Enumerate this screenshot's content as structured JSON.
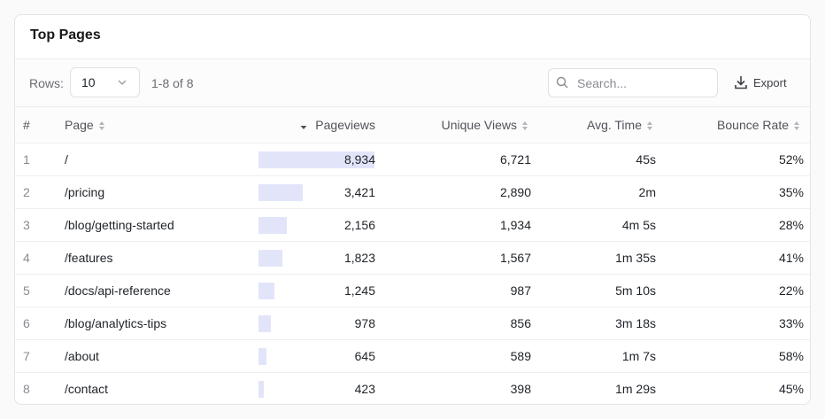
{
  "card": {
    "title": "Top Pages"
  },
  "toolbar": {
    "rows_label": "Rows:",
    "rows_value": "10",
    "range": "1-8 of 8",
    "search_placeholder": "Search...",
    "export": "Export"
  },
  "table": {
    "columns": [
      "#",
      "Page",
      "Pageviews",
      "Unique Views",
      "Avg. Time",
      "Bounce Rate"
    ],
    "rows": [
      {
        "rank": "1",
        "page": "/",
        "pageviews": {
          "value": 8934,
          "label": "8,934"
        },
        "unique_views": "6,721",
        "avg_time": "45s",
        "bounce_rate": "52%"
      },
      {
        "rank": "2",
        "page": "/pricing",
        "pageviews": {
          "value": 3421,
          "label": "3,421"
        },
        "unique_views": "2,890",
        "avg_time": "2m",
        "bounce_rate": "35%"
      },
      {
        "rank": "3",
        "page": "/blog/getting-started",
        "pageviews": {
          "value": 2156,
          "label": "2,156"
        },
        "unique_views": "1,934",
        "avg_time": "4m 5s",
        "bounce_rate": "28%"
      },
      {
        "rank": "4",
        "page": "/features",
        "pageviews": {
          "value": 1823,
          "label": "1,823"
        },
        "unique_views": "1,567",
        "avg_time": "1m 35s",
        "bounce_rate": "41%"
      },
      {
        "rank": "5",
        "page": "/docs/api-reference",
        "pageviews": {
          "value": 1245,
          "label": "1,245"
        },
        "unique_views": "987",
        "avg_time": "5m 10s",
        "bounce_rate": "22%"
      },
      {
        "rank": "6",
        "page": "/blog/analytics-tips",
        "pageviews": {
          "value": 978,
          "label": "978"
        },
        "unique_views": "856",
        "avg_time": "3m 18s",
        "bounce_rate": "33%"
      },
      {
        "rank": "7",
        "page": "/about",
        "pageviews": {
          "value": 645,
          "label": "645"
        },
        "unique_views": "589",
        "avg_time": "1m 7s",
        "bounce_rate": "58%"
      },
      {
        "rank": "8",
        "page": "/contact",
        "pageviews": {
          "value": 423,
          "label": "423"
        },
        "unique_views": "398",
        "avg_time": "1m 29s",
        "bounce_rate": "45%"
      }
    ]
  }
}
